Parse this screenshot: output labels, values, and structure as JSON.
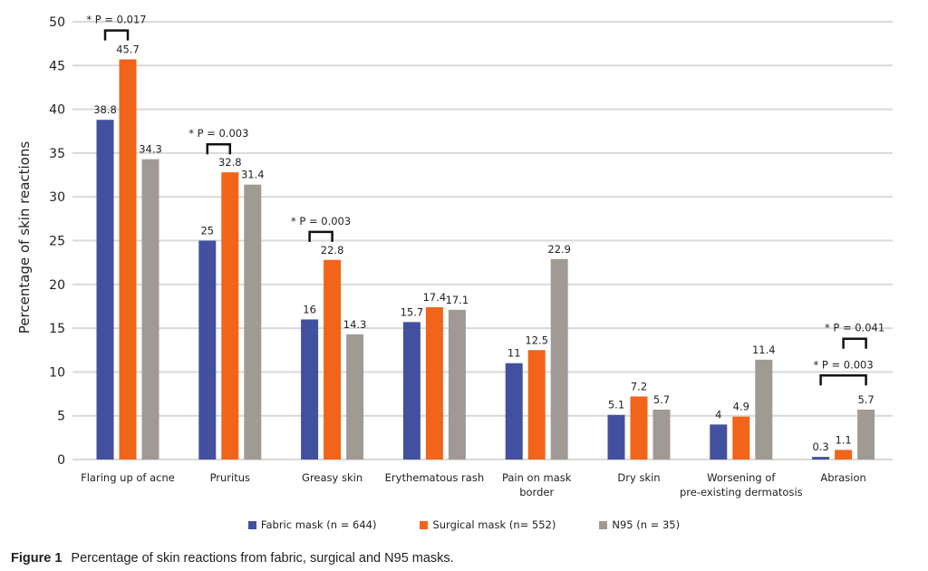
{
  "chart_data": {
    "type": "bar",
    "title": "",
    "xlabel": "",
    "ylabel": "Percentage of skin reactions",
    "ylim": [
      0,
      50
    ],
    "yticks": [
      0,
      5,
      10,
      15,
      20,
      25,
      30,
      35,
      40,
      45,
      50
    ],
    "grid": true,
    "legend_position": "bottom",
    "categories": [
      [
        "Flaring up of acne"
      ],
      [
        "Pruritus"
      ],
      [
        "Greasy skin"
      ],
      [
        "Erythematous rash"
      ],
      [
        "Pain on mask",
        "border"
      ],
      [
        "Dry skin"
      ],
      [
        "Worsening of",
        "pre-existing dermatosis"
      ],
      [
        "Abrasion"
      ]
    ],
    "series": [
      {
        "name": "Fabric mask (n = 644)",
        "color": "#4350a0",
        "values": [
          38.8,
          25,
          16,
          15.7,
          11,
          5.1,
          4,
          0.3
        ],
        "labels": [
          "38.8",
          "25",
          "16",
          "15.7",
          "11",
          "5.1",
          "4",
          "0.3"
        ]
      },
      {
        "name": "Surgical mask (n= 552)",
        "color": "#f26419",
        "values": [
          45.7,
          32.8,
          22.8,
          17.4,
          12.5,
          7.2,
          4.9,
          1.1
        ],
        "labels": [
          "45.7",
          "32.8",
          "22.8",
          "17.4",
          "12.5",
          "7.2",
          "4.9",
          "1.1"
        ]
      },
      {
        "name": "N95 (n = 35)",
        "color": "#a09a94",
        "values": [
          34.3,
          31.4,
          14.3,
          17.1,
          22.9,
          5.7,
          11.4,
          5.7
        ],
        "labels": [
          "34.3",
          "31.4",
          "14.3",
          "17.1",
          "22.9",
          "5.7",
          "11.4",
          "5.7"
        ]
      }
    ],
    "annotations": [
      {
        "text": "* P = 0.017",
        "category": 0,
        "from_series": 0,
        "to_series": 1,
        "level": 49
      },
      {
        "text": "* P = 0.003",
        "category": 1,
        "from_series": 0,
        "to_series": 1,
        "level": 36
      },
      {
        "text": "* P = 0.003",
        "category": 2,
        "from_series": 0,
        "to_series": 1,
        "level": 26
      },
      {
        "text": "* P = 0.041",
        "category": 7,
        "from_series": 1,
        "to_series": 2,
        "level": 13.8
      },
      {
        "text": "* P = 0.003",
        "category": 7,
        "from_series": 0,
        "to_series": 2,
        "level": 9.6
      }
    ]
  },
  "caption": {
    "label": "Figure 1",
    "text": "Percentage of skin reactions from fabric, surgical and N95 masks."
  }
}
